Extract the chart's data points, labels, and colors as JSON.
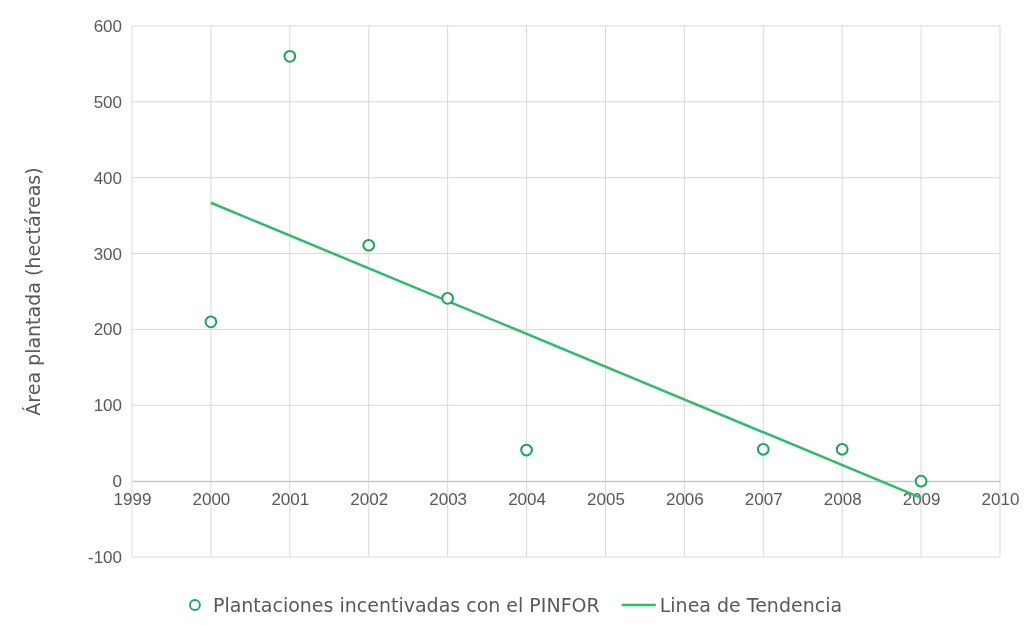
{
  "chart_data": {
    "type": "scatter",
    "ylabel": "Área plantada (hectáreas)",
    "xlim": [
      1999,
      2010
    ],
    "xticks": [
      1999,
      2000,
      2001,
      2002,
      2003,
      2004,
      2005,
      2006,
      2007,
      2008,
      2009,
      2010
    ],
    "ylim": [
      -100,
      600
    ],
    "yticks": [
      -100,
      0,
      100,
      200,
      300,
      400,
      500,
      600
    ],
    "grid": true,
    "legend": "bottom",
    "series": [
      {
        "name": "Plantaciones incentivadas con el PINFOR",
        "marker": "circle",
        "color": "#1fa35c",
        "x": [
          2000,
          2001,
          2002,
          2003,
          2004,
          2007,
          2008,
          2009
        ],
        "values": [
          210,
          560,
          311,
          241,
          41,
          42,
          42,
          0
        ]
      },
      {
        "name": "Linea de Tendencia",
        "type": "line",
        "marker": "none",
        "color": "#2dbb6c",
        "x": [
          2000,
          2009
        ],
        "values": [
          367,
          -22
        ]
      }
    ]
  }
}
